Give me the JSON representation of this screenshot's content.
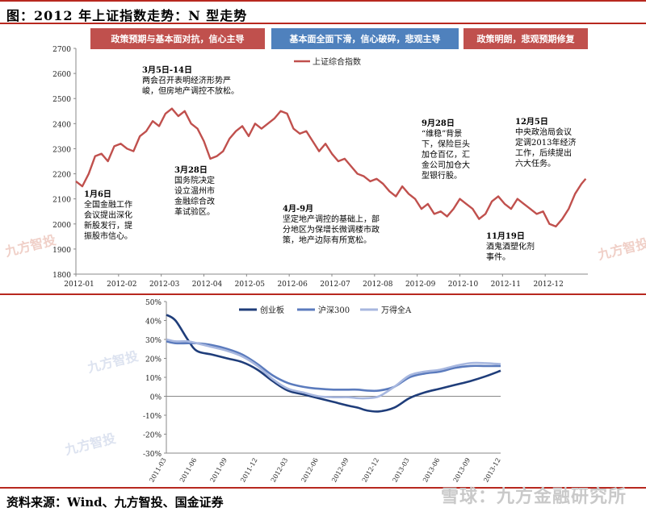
{
  "title": "图：2012 年上证指数走势：N 型走势",
  "source": "资料来源：Wind、九方智投、国金证券",
  "watermark_bottom": "雪球：九方金融研究所",
  "watermark_small": "九方智投",
  "banners": [
    {
      "text": "政策预期与基本面对抗，信心主导",
      "color": "#c0504d"
    },
    {
      "text": "基本面全面下滑，信心破碎，悲观主导",
      "color": "#4f81bd"
    },
    {
      "text": "政策明朗，悲观预期修复",
      "color": "#c0504d"
    }
  ],
  "chart_data": [
    {
      "type": "line",
      "legend": [
        "上证综合指数"
      ],
      "ylim": [
        1800,
        2700
      ],
      "yticks": [
        1800,
        1900,
        2000,
        2100,
        2200,
        2300,
        2400,
        2500,
        2600,
        2700
      ],
      "xticks": [
        "2012-01",
        "2012-02",
        "2012-03",
        "2012-04",
        "2012-05",
        "2012-06",
        "2012-07",
        "2012-08",
        "2012-09",
        "2012-10",
        "2012-11",
        "2012-12"
      ],
      "color": "#c0504d",
      "series": [
        {
          "name": "上证综合指数",
          "x": [
            0,
            0.15,
            0.3,
            0.45,
            0.6,
            0.75,
            0.9,
            1.05,
            1.2,
            1.35,
            1.5,
            1.65,
            1.8,
            1.95,
            2.1,
            2.25,
            2.4,
            2.55,
            2.7,
            2.85,
            3.0,
            3.15,
            3.3,
            3.45,
            3.6,
            3.75,
            3.9,
            4.05,
            4.2,
            4.35,
            4.5,
            4.65,
            4.8,
            4.95,
            5.1,
            5.25,
            5.4,
            5.55,
            5.7,
            5.85,
            6.0,
            6.15,
            6.3,
            6.45,
            6.6,
            6.75,
            6.9,
            7.05,
            7.2,
            7.35,
            7.5,
            7.65,
            7.8,
            7.95,
            8.1,
            8.25,
            8.4,
            8.55,
            8.7,
            8.85,
            9.0,
            9.15,
            9.3,
            9.45,
            9.6,
            9.75,
            9.9,
            10.05,
            10.2,
            10.35,
            10.5,
            10.65,
            10.8,
            10.95,
            11.1,
            11.25,
            11.4,
            11.55,
            11.7,
            11.85,
            11.95
          ],
          "values": [
            2170,
            2150,
            2200,
            2270,
            2280,
            2250,
            2310,
            2320,
            2300,
            2290,
            2350,
            2370,
            2410,
            2390,
            2440,
            2460,
            2430,
            2450,
            2400,
            2380,
            2330,
            2260,
            2270,
            2290,
            2340,
            2370,
            2390,
            2350,
            2400,
            2380,
            2400,
            2420,
            2450,
            2440,
            2380,
            2360,
            2370,
            2330,
            2290,
            2320,
            2280,
            2250,
            2260,
            2230,
            2200,
            2190,
            2170,
            2180,
            2160,
            2130,
            2110,
            2150,
            2120,
            2100,
            2060,
            2080,
            2040,
            2050,
            2030,
            2060,
            2100,
            2080,
            2060,
            2020,
            2040,
            2090,
            2110,
            2080,
            2060,
            2100,
            2080,
            2060,
            2040,
            2050,
            2000,
            1990,
            2020,
            2060,
            2120,
            2160,
            2180
          ]
        }
      ],
      "annotations": [
        {
          "title": "1月6日",
          "text": [
            "全国金融工作",
            "会议提出深化",
            "新股发行，提",
            "振股市信心。"
          ]
        },
        {
          "title": "3月5日-14日",
          "text": [
            "两会召开表明经济形势严",
            "峻，但房地产调控不放松。"
          ]
        },
        {
          "title": "3月28日",
          "text": [
            "国务院决定",
            "设立温州市",
            "金融综合改",
            "革试验区。"
          ]
        },
        {
          "title": "4月-9月",
          "text": [
            "坚定地产调控的基础上，部",
            "分地区为保增长微调楼市政",
            "策，地产边际有所宽松。"
          ]
        },
        {
          "title": "9月28日",
          "text": [
            "“维稳”背景",
            "下，保险巨头",
            "加仓百亿，汇",
            "金公司加仓大",
            "型银行股。"
          ]
        },
        {
          "title": "11月19日",
          "text": [
            "酒鬼酒塑化剂",
            "事件。"
          ]
        },
        {
          "title": "12月5日",
          "text": [
            "中央政治局会议",
            "定调2013年经济",
            "工作，后续提出",
            "六大任务。"
          ]
        }
      ]
    },
    {
      "type": "line",
      "ylim": [
        -30,
        50
      ],
      "yticks": [
        "-30%",
        "-20%",
        "-10%",
        "0%",
        "10%",
        "20%",
        "30%",
        "40%",
        "50%"
      ],
      "xticks": [
        "2011-03",
        "2011-06",
        "2011-09",
        "2011-12",
        "2012-03",
        "2012-06",
        "2012-09",
        "2012-12",
        "2013-03",
        "2013-06",
        "2013-09",
        "2013-12"
      ],
      "series": [
        {
          "name": "创业板",
          "color": "#1f3d7a",
          "x": [
            0,
            0.3,
            0.7,
            1,
            1.5,
            2,
            2.5,
            3,
            3.5,
            4,
            4.5,
            5,
            5.5,
            6,
            6.3,
            6.6,
            7,
            7.5,
            8,
            8.5,
            9,
            9.5,
            10,
            10.5,
            11
          ],
          "values": [
            43,
            40,
            30,
            24,
            22,
            20,
            18,
            14,
            8,
            3,
            1,
            -1,
            -3,
            -5,
            -6,
            -7.5,
            -8,
            -6,
            -1,
            2,
            4,
            6,
            8,
            10.5,
            13.5
          ]
        },
        {
          "name": "沪深300",
          "color": "#5b7bbd",
          "x": [
            0,
            0.3,
            0.7,
            1,
            1.5,
            2,
            2.5,
            3,
            3.5,
            4,
            4.5,
            5,
            5.5,
            6,
            6.3,
            6.6,
            7,
            7.5,
            8,
            8.5,
            9,
            9.5,
            10,
            10.5,
            11
          ],
          "values": [
            29,
            28,
            28,
            28,
            27,
            25,
            22,
            17,
            11,
            7,
            5,
            4,
            3.5,
            3.5,
            3.5,
            3,
            3,
            5,
            10,
            12,
            13,
            15,
            16,
            16,
            16
          ]
        },
        {
          "name": "万得全A",
          "color": "#a7b7df",
          "x": [
            0,
            0.3,
            0.7,
            1,
            1.5,
            2,
            2.5,
            3,
            3.5,
            4,
            4.5,
            5,
            5.5,
            6,
            6.3,
            6.6,
            7,
            7.5,
            8,
            8.5,
            9,
            9.5,
            10,
            10.5,
            11
          ],
          "values": [
            30,
            29,
            29,
            28,
            26,
            24,
            21,
            16,
            9,
            4,
            2,
            0,
            -0.5,
            -0.5,
            -1,
            -1,
            0,
            5,
            11,
            13,
            14,
            16,
            17.5,
            17.5,
            17
          ]
        }
      ]
    }
  ]
}
